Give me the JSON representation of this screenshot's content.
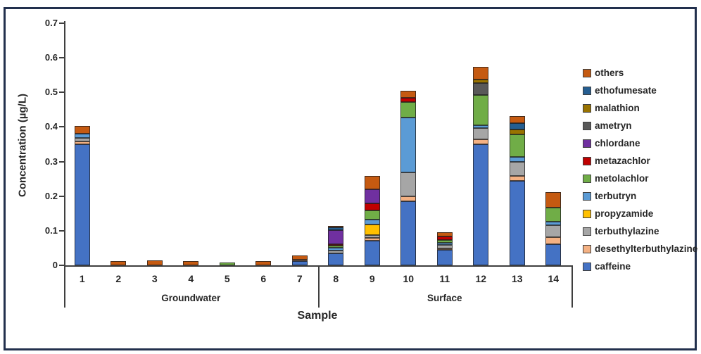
{
  "figure": {
    "border_color": "#22304d",
    "background": "#ffffff"
  },
  "chart_data": {
    "type": "bar",
    "stacked": true,
    "xlabel": "Sample",
    "ylabel": "Concentration (µg/L)",
    "ylim": [
      0,
      0.7
    ],
    "yticks": [
      "0",
      "0.1",
      "0.2",
      "0.3",
      "0.4",
      "0.5",
      "0.6",
      "0.7"
    ],
    "grid": false,
    "legend_position": "right",
    "legend_order": "reverse of stacking order (top of stack listed first)",
    "categories": [
      "1",
      "2",
      "3",
      "4",
      "5",
      "6",
      "7",
      "8",
      "9",
      "10",
      "11",
      "12",
      "13",
      "14"
    ],
    "groups": [
      {
        "label": "Groundwater",
        "span": 7
      },
      {
        "label": "Surface",
        "span": 7
      }
    ],
    "series": [
      {
        "name": "caffeine",
        "color": "#4472C4",
        "values": [
          0.35,
          0,
          0,
          0,
          0,
          0,
          0.013,
          0.035,
          0.072,
          0.185,
          0.044,
          0.35,
          0.245,
          0.062
        ]
      },
      {
        "name": "desethylterbuthylazine",
        "color": "#F4B183",
        "values": [
          0.008,
          0,
          0,
          0,
          0,
          0,
          0.003,
          0,
          0.008,
          0.015,
          0.004,
          0.014,
          0.014,
          0.019
        ]
      },
      {
        "name": "terbuthylazine",
        "color": "#A6A6A6",
        "values": [
          0.01,
          0,
          0,
          0,
          0,
          0,
          0,
          0.008,
          0.008,
          0.068,
          0.01,
          0.032,
          0.04,
          0.034
        ]
      },
      {
        "name": "propyzamide",
        "color": "#FFC000",
        "values": [
          0,
          0,
          0,
          0,
          0,
          0,
          0,
          0,
          0.03,
          0,
          0,
          0,
          0,
          0
        ]
      },
      {
        "name": "terbutryn",
        "color": "#5B9BD5",
        "values": [
          0.012,
          0,
          0,
          0,
          0,
          0,
          0,
          0.008,
          0.015,
          0.16,
          0.007,
          0.008,
          0.014,
          0.012
        ]
      },
      {
        "name": "metolachlor",
        "color": "#70AD47",
        "values": [
          0,
          0,
          0,
          0,
          0.008,
          0,
          0,
          0.006,
          0.025,
          0.045,
          0.009,
          0.088,
          0.065,
          0.04
        ]
      },
      {
        "name": "metazachlor",
        "color": "#C00000",
        "values": [
          0,
          0,
          0,
          0,
          0,
          0,
          0,
          0.005,
          0.022,
          0.011,
          0.009,
          0,
          0,
          0
        ]
      },
      {
        "name": "chlordane",
        "color": "#7030A0",
        "values": [
          0,
          0,
          0,
          0,
          0,
          0,
          0,
          0.04,
          0.04,
          0,
          0,
          0,
          0,
          0
        ]
      },
      {
        "name": "ametryn",
        "color": "#595959",
        "values": [
          0,
          0,
          0,
          0,
          0,
          0,
          0,
          0,
          0,
          0,
          0,
          0.036,
          0,
          0
        ]
      },
      {
        "name": "malathion",
        "color": "#997300",
        "values": [
          0,
          0,
          0,
          0,
          0,
          0,
          0,
          0,
          0,
          0,
          0,
          0.01,
          0.015,
          0
        ]
      },
      {
        "name": "ethofumesate",
        "color": "#255E91",
        "values": [
          0,
          0,
          0,
          0,
          0,
          0,
          0,
          0.007,
          0,
          0,
          0,
          0,
          0.019,
          0
        ]
      },
      {
        "name": "others",
        "color": "#C55A11",
        "values": [
          0.023,
          0.013,
          0.015,
          0.013,
          0,
          0.012,
          0.012,
          0.005,
          0.038,
          0.021,
          0.012,
          0.036,
          0.019,
          0.045
        ]
      }
    ]
  }
}
